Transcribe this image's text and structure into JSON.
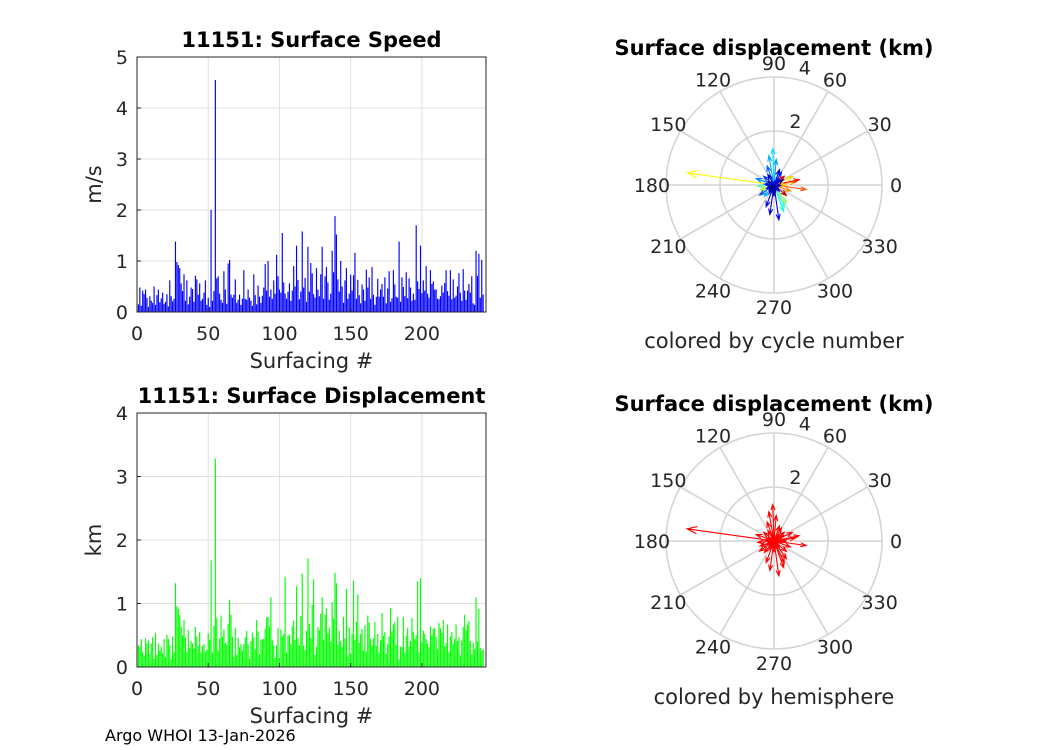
{
  "footer": "Argo WHOI 13-Jan-2026",
  "colors": {
    "grid": "#e0e0e0",
    "axis": "#262626",
    "speed_bars": "#0000ff",
    "disp_bars": "#00ff00",
    "polar_grid": "#d4d4d4",
    "hemisphere": "#ff0000"
  },
  "chart_data": [
    {
      "id": "speed",
      "type": "bar",
      "title": "11151: Surface Speed",
      "xlabel": "Surfacing #",
      "ylabel": "m/s",
      "xlim": [
        0,
        245
      ],
      "ylim": [
        0,
        5
      ],
      "xticks": [
        0,
        50,
        100,
        150,
        200
      ],
      "yticks": [
        0,
        1,
        2,
        3,
        4,
        5
      ],
      "grid": true,
      "color": "#0000ff",
      "note": "values approximate, one bar per surfacing (1-245)",
      "values": [
        0.15,
        0.48,
        0.12,
        0.42,
        0.35,
        0.44,
        0.28,
        0.1,
        0.31,
        0.22,
        0.18,
        0.5,
        0.14,
        0.33,
        0.44,
        0.19,
        0.27,
        0.38,
        0.16,
        0.2,
        0.35,
        0.11,
        0.62,
        0.31,
        0.21,
        0.26,
        1.38,
        0.98,
        0.92,
        0.86,
        0.56,
        0.41,
        0.74,
        0.22,
        0.62,
        0.15,
        0.3,
        0.48,
        0.45,
        0.2,
        0.71,
        0.64,
        0.34,
        0.56,
        0.22,
        0.26,
        0.38,
        0.62,
        0.14,
        0.28,
        0.1,
        2.0,
        0.22,
        0.41,
        4.55,
        0.66,
        0.7,
        0.36,
        0.24,
        0.18,
        0.8,
        0.44,
        0.16,
        0.95,
        1.02,
        0.34,
        0.28,
        0.34,
        0.64,
        0.18,
        0.24,
        0.34,
        0.14,
        0.26,
        0.82,
        0.26,
        0.24,
        0.44,
        0.28,
        0.22,
        0.12,
        0.74,
        0.33,
        0.15,
        0.52,
        0.3,
        0.18,
        0.32,
        0.48,
        0.94,
        0.42,
        1.0,
        0.3,
        0.44,
        0.26,
        0.62,
        0.36,
        1.12,
        0.7,
        0.44,
        0.38,
        1.55,
        0.58,
        0.36,
        0.26,
        0.4,
        0.56,
        0.22,
        0.42,
        0.9,
        0.5,
        1.3,
        0.63,
        0.25,
        0.4,
        1.58,
        0.48,
        0.67,
        0.2,
        1.28,
        0.4,
        0.96,
        0.76,
        0.35,
        0.28,
        0.86,
        0.44,
        0.31,
        0.74,
        1.28,
        0.26,
        0.7,
        0.88,
        0.58,
        0.24,
        0.36,
        1.2,
        0.78,
        1.88,
        1.52,
        0.64,
        0.4,
        1.0,
        0.5,
        0.18,
        0.62,
        0.86,
        0.26,
        0.36,
        0.73,
        0.42,
        0.72,
        1.16,
        0.26,
        0.63,
        0.33,
        0.17,
        0.54,
        0.44,
        0.22,
        0.83,
        0.48,
        0.68,
        0.26,
        0.88,
        0.34,
        0.14,
        0.3,
        0.65,
        0.3,
        0.44,
        0.55,
        0.3,
        0.68,
        0.17,
        0.46,
        0.8,
        0.2,
        0.27,
        0.82,
        0.54,
        0.3,
        0.28,
        1.38,
        0.2,
        0.68,
        0.49,
        0.31,
        0.78,
        0.27,
        0.66,
        0.48,
        0.22,
        0.36,
        0.24,
        1.7,
        0.6,
        0.45,
        1.3,
        0.37,
        0.62,
        0.42,
        0.9,
        0.36,
        0.28,
        0.82,
        0.55,
        0.6,
        0.44,
        0.44,
        0.26,
        0.25,
        0.31,
        0.52,
        0.38,
        0.57,
        0.82,
        0.41,
        0.32,
        0.82,
        0.25,
        0.64,
        0.28,
        0.32,
        0.5,
        0.76,
        0.38,
        0.22,
        0.84,
        0.42,
        0.24,
        0.42,
        0.55,
        0.38,
        0.7,
        0.17,
        0.14,
        1.2,
        0.71,
        1.14,
        0.28,
        1.02,
        0.34
      ]
    },
    {
      "id": "displacement",
      "type": "bar",
      "title": "11151: Surface Displacement",
      "xlabel": "Surfacing #",
      "ylabel": "km",
      "xlim": [
        0,
        245
      ],
      "ylim": [
        0,
        4
      ],
      "xticks": [
        0,
        50,
        100,
        150,
        200
      ],
      "yticks": [
        0,
        1,
        2,
        3,
        4
      ],
      "grid": true,
      "color": "#00ff00",
      "note": "values approximate, one bar per surfacing (1-245)",
      "values": [
        0.34,
        0.32,
        0.44,
        0.24,
        0.18,
        0.45,
        0.37,
        0.42,
        0.2,
        0.37,
        0.47,
        0.13,
        0.54,
        0.19,
        0.37,
        0.26,
        0.32,
        0.22,
        0.44,
        0.16,
        0.51,
        0.44,
        0.34,
        0.12,
        0.48,
        0.23,
        1.32,
        0.96,
        0.92,
        0.82,
        0.63,
        0.5,
        0.74,
        0.46,
        0.24,
        0.58,
        0.3,
        0.41,
        0.37,
        0.29,
        0.63,
        0.48,
        0.33,
        0.55,
        0.23,
        0.33,
        0.36,
        0.24,
        0.27,
        0.53,
        0.43,
        1.68,
        0.23,
        0.65,
        3.28,
        0.77,
        0.26,
        0.45,
        0.81,
        0.48,
        0.59,
        0.38,
        0.35,
        0.68,
        1.06,
        0.82,
        0.48,
        0.16,
        0.61,
        0.19,
        0.46,
        0.31,
        0.36,
        0.26,
        0.36,
        0.47,
        0.57,
        0.36,
        0.13,
        0.41,
        0.54,
        0.47,
        0.28,
        0.74,
        0.56,
        0.2,
        0.43,
        0.44,
        0.44,
        0.6,
        0.78,
        0.79,
        0.64,
        1.1,
        0.42,
        0.34,
        0.14,
        0.34,
        0.61,
        0.14,
        0.59,
        0.48,
        0.52,
        1.42,
        0.23,
        0.49,
        0.51,
        0.36,
        0.64,
        0.73,
        0.43,
        1.27,
        0.45,
        0.34,
        0.8,
        1.47,
        0.34,
        0.27,
        0.57,
        1.71,
        0.68,
        0.46,
        0.98,
        1.38,
        0.19,
        0.32,
        0.63,
        0.58,
        0.84,
        1.1,
        0.43,
        0.82,
        0.92,
        0.53,
        0.62,
        0.4,
        1.02,
        0.76,
        1.48,
        1.32,
        0.35,
        0.57,
        0.41,
        0.32,
        0.79,
        0.45,
        1.23,
        0.17,
        0.62,
        0.21,
        0.52,
        1.36,
        0.43,
        0.71,
        1.14,
        0.38,
        0.52,
        0.6,
        0.26,
        0.66,
        0.24,
        0.81,
        0.7,
        0.44,
        0.34,
        0.45,
        0.71,
        0.33,
        0.52,
        0.23,
        0.42,
        0.85,
        0.49,
        0.55,
        0.21,
        0.36,
        0.48,
        0.93,
        0.56,
        0.67,
        0.71,
        0.34,
        0.79,
        0.12,
        0.32,
        0.31,
        0.79,
        0.23,
        0.49,
        0.61,
        0.32,
        0.41,
        0.77,
        0.55,
        0.44,
        0.5,
        1.35,
        0.23,
        1.4,
        0.39,
        0.57,
        0.52,
        0.44,
        0.37,
        0.31,
        0.64,
        0.5,
        0.6,
        0.62,
        0.47,
        0.28,
        0.69,
        0.61,
        0.54,
        0.74,
        0.33,
        0.38,
        0.67,
        0.23,
        0.48,
        0.55,
        0.36,
        0.44,
        0.67,
        0.41,
        0.47,
        0.18,
        0.42,
        0.63,
        0.82,
        0.58,
        0.67,
        0.72,
        0.41,
        0.2,
        0.38,
        0.28,
        1.1,
        0.4,
        0.92,
        0.3,
        0.26,
        0.28
      ]
    },
    {
      "id": "polar-cycle",
      "type": "polar-compass",
      "title": "Surface displacement (km)",
      "xlabel": "colored by cycle number",
      "rlim": [
        0,
        4
      ],
      "rticks": [
        2,
        4
      ],
      "angle_ticks": [
        0,
        30,
        60,
        90,
        120,
        150,
        180,
        210,
        240,
        270,
        300,
        330
      ],
      "color_mode": "cycle",
      "colormap": "jet",
      "vectors": [
        {
          "angle": 172,
          "r": 3.25,
          "cycle": 0.62
        },
        {
          "angle": 8,
          "r": 0.8,
          "cycle": 0.72
        },
        {
          "angle": 352,
          "r": 1.2,
          "cycle": 0.8
        },
        {
          "angle": 12,
          "r": 0.95,
          "cycle": 0.86
        },
        {
          "angle": 25,
          "r": 0.75,
          "cycle": 0.66
        },
        {
          "angle": 290,
          "r": 1.05,
          "cycle": 0.4
        },
        {
          "angle": 295,
          "r": 0.9,
          "cycle": 0.42
        },
        {
          "angle": 305,
          "r": 0.8,
          "cycle": 0.52
        },
        {
          "angle": 278,
          "r": 1.3,
          "cycle": 0.12
        },
        {
          "angle": 262,
          "r": 1.1,
          "cycle": 0.08
        },
        {
          "angle": 250,
          "r": 0.85,
          "cycle": 0.1
        },
        {
          "angle": 92,
          "r": 1.35,
          "cycle": 0.35
        },
        {
          "angle": 100,
          "r": 1.1,
          "cycle": 0.3
        },
        {
          "angle": 85,
          "r": 0.95,
          "cycle": 0.28
        },
        {
          "angle": 110,
          "r": 0.75,
          "cycle": 0.22
        },
        {
          "angle": 70,
          "r": 0.6,
          "cycle": 0.05
        },
        {
          "angle": 60,
          "r": 0.55,
          "cycle": 0.15
        },
        {
          "angle": 40,
          "r": 0.5,
          "cycle": 0.9
        },
        {
          "angle": 140,
          "r": 0.5,
          "cycle": 0.18
        },
        {
          "angle": 160,
          "r": 0.7,
          "cycle": 0.25
        },
        {
          "angle": 185,
          "r": 0.6,
          "cycle": 0.45
        },
        {
          "angle": 200,
          "r": 0.55,
          "cycle": 0.55
        },
        {
          "angle": 215,
          "r": 0.65,
          "cycle": 0.2
        },
        {
          "angle": 230,
          "r": 0.55,
          "cycle": 0.3
        },
        {
          "angle": 320,
          "r": 0.6,
          "cycle": 0.95
        },
        {
          "angle": 340,
          "r": 0.65,
          "cycle": 0.75
        },
        {
          "angle": 0,
          "r": 0.45,
          "cycle": 0.68
        },
        {
          "angle": 30,
          "r": 0.4,
          "cycle": 0.02
        },
        {
          "angle": 120,
          "r": 0.45,
          "cycle": 0.05
        },
        {
          "angle": 175,
          "r": 0.35,
          "cycle": 0.12
        },
        {
          "angle": 205,
          "r": 0.3,
          "cycle": 0.05
        },
        {
          "angle": 240,
          "r": 0.35,
          "cycle": 0.08
        },
        {
          "angle": 270,
          "r": 0.4,
          "cycle": 0.02
        },
        {
          "angle": 310,
          "r": 0.3,
          "cycle": 0.1
        },
        {
          "angle": 355,
          "r": 0.25,
          "cycle": 0.06
        },
        {
          "angle": 50,
          "r": 0.3,
          "cycle": 0.1
        },
        {
          "angle": 150,
          "r": 0.25,
          "cycle": 0.04
        },
        {
          "angle": 225,
          "r": 0.25,
          "cycle": 0.0
        },
        {
          "angle": 285,
          "r": 0.2,
          "cycle": 0.03
        }
      ]
    },
    {
      "id": "polar-hemisphere",
      "type": "polar-compass",
      "title": "Surface displacement (km)",
      "xlabel": "colored by hemisphere",
      "rlim": [
        0,
        4
      ],
      "rticks": [
        2,
        4
      ],
      "angle_ticks": [
        0,
        30,
        60,
        90,
        120,
        150,
        180,
        210,
        240,
        270,
        300,
        330
      ],
      "color_mode": "single",
      "color": "#ff0000",
      "vectors": [
        {
          "angle": 172,
          "r": 3.25
        },
        {
          "angle": 8,
          "r": 0.8
        },
        {
          "angle": 352,
          "r": 1.2
        },
        {
          "angle": 12,
          "r": 0.95
        },
        {
          "angle": 25,
          "r": 0.75
        },
        {
          "angle": 290,
          "r": 1.05
        },
        {
          "angle": 295,
          "r": 0.9
        },
        {
          "angle": 305,
          "r": 0.8
        },
        {
          "angle": 278,
          "r": 1.3
        },
        {
          "angle": 262,
          "r": 1.1
        },
        {
          "angle": 250,
          "r": 0.85
        },
        {
          "angle": 92,
          "r": 1.35
        },
        {
          "angle": 100,
          "r": 1.1
        },
        {
          "angle": 85,
          "r": 0.95
        },
        {
          "angle": 110,
          "r": 0.75
        },
        {
          "angle": 70,
          "r": 0.6
        },
        {
          "angle": 60,
          "r": 0.55
        },
        {
          "angle": 40,
          "r": 0.5
        },
        {
          "angle": 140,
          "r": 0.5
        },
        {
          "angle": 160,
          "r": 0.7
        },
        {
          "angle": 185,
          "r": 0.6
        },
        {
          "angle": 200,
          "r": 0.55
        },
        {
          "angle": 215,
          "r": 0.65
        },
        {
          "angle": 230,
          "r": 0.55
        },
        {
          "angle": 320,
          "r": 0.6
        },
        {
          "angle": 340,
          "r": 0.65
        },
        {
          "angle": 0,
          "r": 0.45
        },
        {
          "angle": 30,
          "r": 0.4
        },
        {
          "angle": 120,
          "r": 0.45
        },
        {
          "angle": 175,
          "r": 0.35
        },
        {
          "angle": 205,
          "r": 0.3
        },
        {
          "angle": 240,
          "r": 0.35
        },
        {
          "angle": 270,
          "r": 0.4
        },
        {
          "angle": 310,
          "r": 0.3
        },
        {
          "angle": 355,
          "r": 0.25
        },
        {
          "angle": 50,
          "r": 0.3
        },
        {
          "angle": 150,
          "r": 0.25
        },
        {
          "angle": 225,
          "r": 0.25
        },
        {
          "angle": 285,
          "r": 0.2
        }
      ]
    }
  ]
}
